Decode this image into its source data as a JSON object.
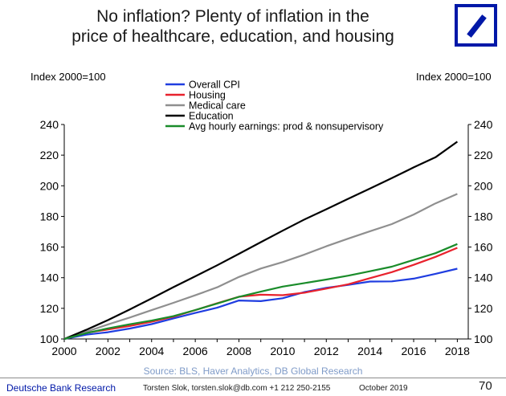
{
  "header": {
    "title_line1": "No inflation? Plenty of inflation in the",
    "title_line2": "price of healthcare, education, and housing"
  },
  "chart_data": {
    "type": "line",
    "title": "No inflation? Plenty of inflation in the price of healthcare, education, and housing",
    "ylabel_left": "Index 2000=100",
    "ylabel_right": "Index 2000=100",
    "xlim": [
      2000,
      2018.5
    ],
    "ylim": [
      100,
      240
    ],
    "x_ticks": [
      "2000",
      "2002",
      "2004",
      "2006",
      "2008",
      "2010",
      "2012",
      "2014",
      "2016",
      "2018"
    ],
    "y_ticks": [
      "100",
      "120",
      "140",
      "160",
      "180",
      "200",
      "220",
      "240"
    ],
    "legend_position": "top-left",
    "grid": false,
    "x": [
      2000,
      2001,
      2002,
      2003,
      2004,
      2005,
      2006,
      2007,
      2008,
      2009,
      2010,
      2011,
      2012,
      2013,
      2014,
      2015,
      2016,
      2017,
      2018
    ],
    "series": [
      {
        "name": "Overall CPI",
        "color": "#1f3de0",
        "values": [
          100,
          102.8,
          104.4,
          106.8,
          109.7,
          113.4,
          117.0,
          120.4,
          125.1,
          124.7,
          126.6,
          130.6,
          133.4,
          135.3,
          137.5,
          137.6,
          139.4,
          142.5,
          145.9
        ]
      },
      {
        "name": "Housing",
        "color": "#e8222d",
        "values": [
          100,
          104.0,
          106.2,
          108.5,
          111.2,
          114.5,
          118.8,
          123.3,
          127.6,
          128.9,
          128.6,
          130.2,
          132.9,
          135.7,
          139.7,
          143.6,
          148.4,
          153.6,
          159.5
        ]
      },
      {
        "name": "Medical care",
        "color": "#8f8f8f",
        "values": [
          100,
          104.6,
          109.5,
          114.0,
          118.8,
          123.6,
          128.5,
          133.7,
          140.5,
          146.0,
          150.2,
          155.1,
          160.5,
          165.5,
          170.3,
          175.0,
          181.2,
          188.5,
          194.7
        ]
      },
      {
        "name": "Education",
        "color": "#000000",
        "values": [
          100,
          105.9,
          112.3,
          119.3,
          126.5,
          133.8,
          140.9,
          148.1,
          155.6,
          163.2,
          170.7,
          178.0,
          184.7,
          191.5,
          198.2,
          205.0,
          212.0,
          218.6,
          228.8
        ]
      },
      {
        "name": "Avg hourly earnings: prod & nonsupervisory",
        "color": "#1a8c2a",
        "values": [
          100,
          103.8,
          106.9,
          109.6,
          112.0,
          114.9,
          118.9,
          123.1,
          127.5,
          130.9,
          134.2,
          136.5,
          138.8,
          141.3,
          144.2,
          147.2,
          151.6,
          156.0,
          162.0
        ]
      }
    ]
  },
  "footer": {
    "source": "Source: BLS, Haver Analytics, DB Global Research",
    "brand": "Deutsche Bank Research",
    "contact": "Torsten Slok, torsten.slok@db.com +1 212 250-2155",
    "date": "October 2019",
    "page_number": "70"
  }
}
